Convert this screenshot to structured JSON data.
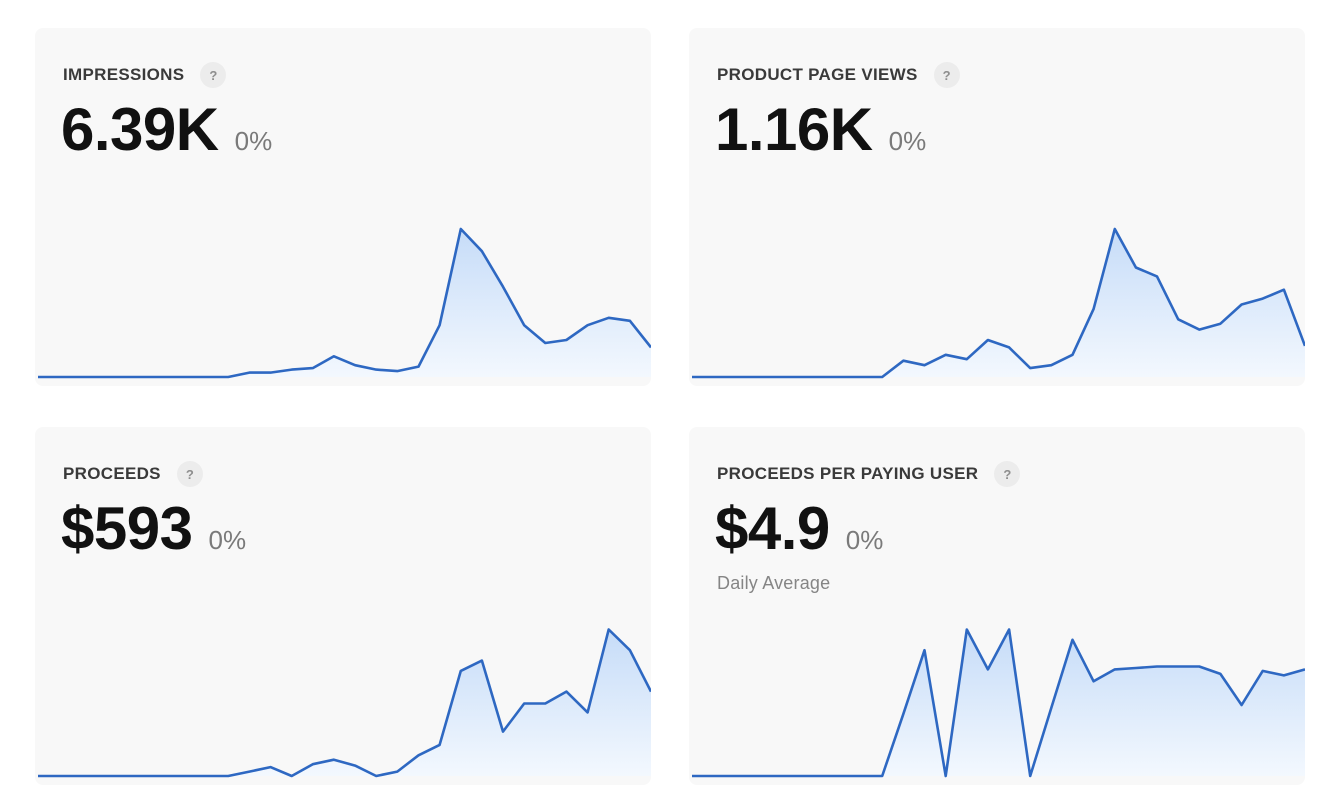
{
  "colors": {
    "line": "#2e68c2",
    "fill_top": "#c6dcf8",
    "fill_bottom": "#f3f8fe",
    "card_bg": "#f8f8f8"
  },
  "cards": [
    {
      "title": "IMPRESSIONS",
      "help_label": "?",
      "value": "6.39K",
      "change": "0%",
      "subtitle": ""
    },
    {
      "title": "PRODUCT PAGE VIEWS",
      "help_label": "?",
      "value": "1.16K",
      "change": "0%",
      "subtitle": ""
    },
    {
      "title": "PROCEEDS",
      "help_label": "?",
      "value": "$593",
      "change": "0%",
      "subtitle": ""
    },
    {
      "title": "PROCEEDS PER PAYING USER",
      "help_label": "?",
      "value": "$4.9",
      "change": "0%",
      "subtitle": "Daily Average"
    }
  ],
  "chart_data": [
    {
      "type": "area",
      "title": "Impressions",
      "x": [
        1,
        2,
        3,
        4,
        5,
        6,
        7,
        8,
        9,
        10,
        11,
        12,
        13,
        14,
        15,
        16,
        17,
        18,
        19,
        20,
        21,
        22,
        23,
        24,
        25,
        26,
        27,
        28,
        29,
        30
      ],
      "values": [
        0,
        0,
        0,
        0,
        0,
        0,
        0,
        0,
        0,
        0,
        3,
        3,
        5,
        6,
        14,
        8,
        5,
        4,
        7,
        35,
        100,
        85,
        61,
        35,
        23,
        25,
        35,
        40,
        38,
        20
      ],
      "xlabel": "",
      "ylabel": "",
      "grid": false,
      "legend": "none"
    },
    {
      "type": "area",
      "title": "Product Page Views",
      "x": [
        1,
        2,
        3,
        4,
        5,
        6,
        7,
        8,
        9,
        10,
        11,
        12,
        13,
        14,
        15,
        16,
        17,
        18,
        19,
        20,
        21,
        22,
        23,
        24,
        25,
        26,
        27,
        28,
        29,
        30
      ],
      "values": [
        0,
        0,
        0,
        0,
        0,
        0,
        0,
        0,
        0,
        0,
        11,
        8,
        15,
        12,
        25,
        20,
        6,
        8,
        15,
        46,
        100,
        74,
        68,
        39,
        32,
        36,
        49,
        53,
        59,
        21
      ],
      "xlabel": "",
      "ylabel": "",
      "grid": false,
      "legend": "none"
    },
    {
      "type": "area",
      "title": "Proceeds",
      "x": [
        1,
        2,
        3,
        4,
        5,
        6,
        7,
        8,
        9,
        10,
        11,
        12,
        13,
        14,
        15,
        16,
        17,
        18,
        19,
        20,
        21,
        22,
        23,
        24,
        25,
        26,
        27,
        28,
        29,
        30
      ],
      "values": [
        0,
        0,
        0,
        0,
        0,
        0,
        0,
        0,
        0,
        0,
        3,
        6,
        0,
        8,
        11,
        7,
        0,
        3,
        14,
        21,
        71,
        78,
        30,
        49,
        49,
        57,
        43,
        99,
        85,
        57
      ],
      "xlabel": "",
      "ylabel": "",
      "grid": false,
      "legend": "none"
    },
    {
      "type": "area",
      "title": "Proceeds Per Paying User (Daily Average)",
      "x": [
        1,
        2,
        3,
        4,
        5,
        6,
        7,
        8,
        9,
        10,
        11,
        12,
        13,
        14,
        15,
        16,
        17,
        18,
        19,
        20,
        21,
        22,
        23,
        24,
        25,
        26,
        27,
        28,
        29,
        30
      ],
      "values": [
        0,
        0,
        0,
        0,
        0,
        0,
        0,
        0,
        0,
        0,
        42,
        85,
        0,
        99,
        72,
        99,
        0,
        46,
        92,
        64,
        72,
        73,
        74,
        74,
        74,
        69,
        48,
        71,
        68,
        72
      ],
      "xlabel": "",
      "ylabel": "",
      "grid": false,
      "legend": "none"
    }
  ]
}
